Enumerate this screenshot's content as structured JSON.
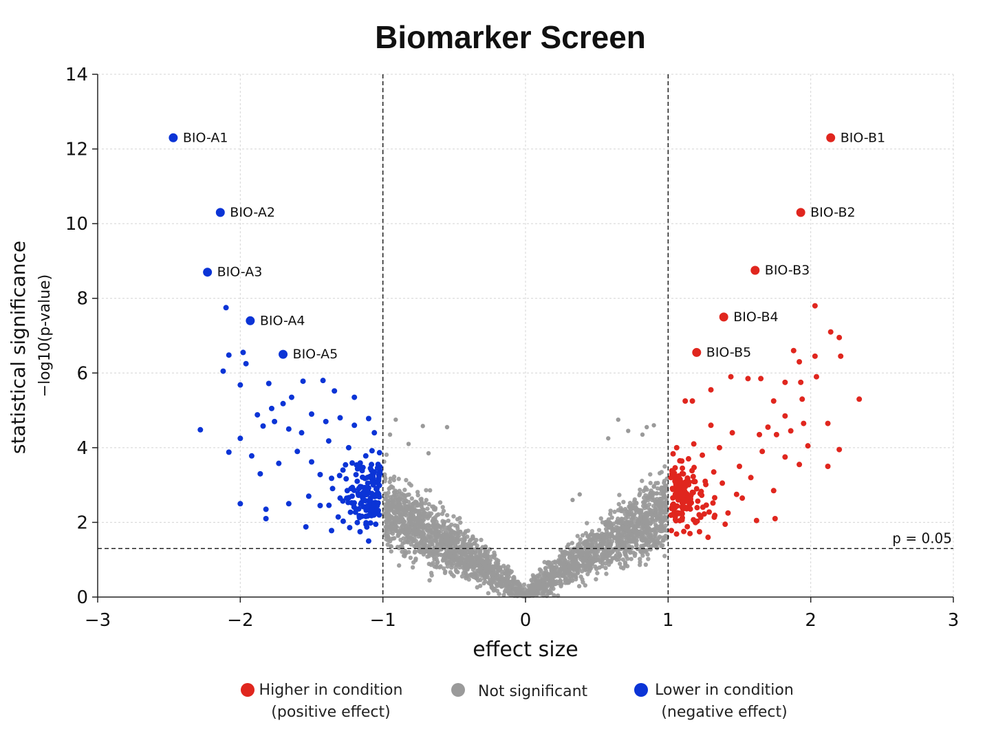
{
  "chart_data": {
    "type": "scatter",
    "title": "Biomarker Screen",
    "xlabel": "effect size",
    "ylabel": "statistical significance",
    "ylabel_sub": "−log10(p-value)",
    "xlim": [
      -3,
      3
    ],
    "ylim": [
      0,
      14
    ],
    "xticks": [
      -3,
      -2,
      -1,
      0,
      1,
      2,
      3
    ],
    "yticks": [
      0,
      2,
      4,
      6,
      8,
      10,
      12,
      14
    ],
    "xtick_labels": [
      "−3",
      "−2",
      "−1",
      "0",
      "1",
      "2",
      "3"
    ],
    "ytick_labels": [
      "0",
      "2",
      "4",
      "6",
      "8",
      "10",
      "12",
      "14"
    ],
    "grid": true,
    "legend_position": "bottom",
    "thresholds": {
      "effect_cutoffs": [
        -1,
        1
      ],
      "pvalue_line_y": 1.3,
      "pvalue_label": "p = 0.05"
    },
    "colors": {
      "positive": "#e0261e",
      "negative": "#0b34d6",
      "not_significant": "#9a9a9a"
    },
    "legend": [
      {
        "key": "positive",
        "line1": "Higher in condition",
        "line2": "(positive effect)"
      },
      {
        "key": "not_significant",
        "line1": "Not significant",
        "line2": ""
      },
      {
        "key": "negative",
        "line1": "Lower in condition",
        "line2": "(negative effect)"
      }
    ],
    "labeled_points": [
      {
        "label": "BIO-A1",
        "x": -2.47,
        "y": 12.3,
        "group": "negative"
      },
      {
        "label": "BIO-A2",
        "x": -2.14,
        "y": 10.3,
        "group": "negative"
      },
      {
        "label": "BIO-A3",
        "x": -2.23,
        "y": 8.7,
        "group": "negative"
      },
      {
        "label": "BIO-A4",
        "x": -1.93,
        "y": 7.4,
        "group": "negative"
      },
      {
        "label": "BIO-A5",
        "x": -1.7,
        "y": 6.5,
        "group": "negative"
      },
      {
        "label": "BIO-B1",
        "x": 2.14,
        "y": 12.3,
        "group": "positive"
      },
      {
        "label": "BIO-B2",
        "x": 1.93,
        "y": 10.3,
        "group": "positive"
      },
      {
        "label": "BIO-B3",
        "x": 1.61,
        "y": 8.75,
        "group": "positive"
      },
      {
        "label": "BIO-B4",
        "x": 1.39,
        "y": 7.5,
        "group": "positive"
      },
      {
        "label": "BIO-B5",
        "x": 1.2,
        "y": 6.55,
        "group": "positive"
      }
    ],
    "negative_points": [
      [
        -2.1,
        7.75
      ],
      [
        -2.08,
        6.48
      ],
      [
        -1.98,
        6.55
      ],
      [
        -1.96,
        6.25
      ],
      [
        -2.12,
        6.05
      ],
      [
        -2.0,
        5.68
      ],
      [
        -2.28,
        4.48
      ],
      [
        -2.08,
        3.88
      ],
      [
        -2.0,
        4.25
      ],
      [
        -1.92,
        3.78
      ],
      [
        -1.8,
        5.72
      ],
      [
        -1.88,
        4.88
      ],
      [
        -1.78,
        5.05
      ],
      [
        -1.7,
        5.18
      ],
      [
        -1.64,
        5.35
      ],
      [
        -1.56,
        5.78
      ],
      [
        -1.42,
        5.8
      ],
      [
        -1.34,
        5.52
      ],
      [
        -1.2,
        5.35
      ],
      [
        -1.84,
        4.58
      ],
      [
        -1.76,
        4.7
      ],
      [
        -1.66,
        4.5
      ],
      [
        -1.57,
        4.4
      ],
      [
        -1.5,
        4.9
      ],
      [
        -1.4,
        4.7
      ],
      [
        -1.3,
        4.8
      ],
      [
        -1.2,
        4.6
      ],
      [
        -1.1,
        4.78
      ],
      [
        -1.86,
        3.3
      ],
      [
        -1.73,
        3.58
      ],
      [
        -1.6,
        3.9
      ],
      [
        -1.5,
        3.62
      ],
      [
        -1.44,
        3.28
      ],
      [
        -1.36,
        3.18
      ],
      [
        -1.28,
        3.4
      ],
      [
        -1.18,
        3.1
      ],
      [
        -1.1,
        2.92
      ],
      [
        -1.05,
        2.7
      ],
      [
        -1.52,
        2.7
      ],
      [
        -1.44,
        2.45
      ],
      [
        -1.3,
        2.65
      ],
      [
        -1.2,
        2.4
      ],
      [
        -1.08,
        2.18
      ],
      [
        -2.0,
        2.5
      ],
      [
        -1.82,
        2.35
      ],
      [
        -1.82,
        2.1
      ],
      [
        -1.66,
        2.5
      ],
      [
        -1.54,
        1.88
      ],
      [
        -1.36,
        1.78
      ],
      [
        -1.16,
        1.75
      ],
      [
        -1.1,
        1.5
      ],
      [
        -1.05,
        1.95
      ],
      [
        -1.38,
        4.18
      ],
      [
        -1.24,
        4.0
      ],
      [
        -1.12,
        3.78
      ],
      [
        -1.06,
        4.4
      ],
      [
        -1.02,
        3.3
      ],
      [
        -1.15,
        2.95
      ],
      [
        -1.25,
        2.85
      ],
      [
        -1.08,
        3.55
      ]
    ],
    "positive_points": [
      [
        2.03,
        7.8
      ],
      [
        2.14,
        7.1
      ],
      [
        2.2,
        6.95
      ],
      [
        2.21,
        6.45
      ],
      [
        2.03,
        6.45
      ],
      [
        1.88,
        6.6
      ],
      [
        1.92,
        6.3
      ],
      [
        2.04,
        5.9
      ],
      [
        1.93,
        5.75
      ],
      [
        1.82,
        5.75
      ],
      [
        1.65,
        5.85
      ],
      [
        1.56,
        5.85
      ],
      [
        2.34,
        5.3
      ],
      [
        1.94,
        5.3
      ],
      [
        1.74,
        5.25
      ],
      [
        1.44,
        5.9
      ],
      [
        1.3,
        5.55
      ],
      [
        1.12,
        5.25
      ],
      [
        1.17,
        5.25
      ],
      [
        2.12,
        4.65
      ],
      [
        2.2,
        3.95
      ],
      [
        2.12,
        3.5
      ],
      [
        1.98,
        4.05
      ],
      [
        1.95,
        4.65
      ],
      [
        1.86,
        4.45
      ],
      [
        1.82,
        4.85
      ],
      [
        1.76,
        4.35
      ],
      [
        1.7,
        4.55
      ],
      [
        1.64,
        4.35
      ],
      [
        1.92,
        3.55
      ],
      [
        1.82,
        3.75
      ],
      [
        1.66,
        3.9
      ],
      [
        1.74,
        2.85
      ],
      [
        1.62,
        2.05
      ],
      [
        1.52,
        2.65
      ],
      [
        1.38,
        3.05
      ],
      [
        1.24,
        3.8
      ],
      [
        1.3,
        4.6
      ],
      [
        1.18,
        4.1
      ],
      [
        1.45,
        4.4
      ],
      [
        1.36,
        4.0
      ],
      [
        1.4,
        1.95
      ],
      [
        1.22,
        1.75
      ],
      [
        1.28,
        1.6
      ],
      [
        1.12,
        2.4
      ],
      [
        1.05,
        2.75
      ],
      [
        1.02,
        3.2
      ],
      [
        1.08,
        3.05
      ],
      [
        1.15,
        2.55
      ],
      [
        1.2,
        2.9
      ],
      [
        1.5,
        3.5
      ],
      [
        1.58,
        3.2
      ],
      [
        1.32,
        3.35
      ],
      [
        1.26,
        3.1
      ],
      [
        1.04,
        2.35
      ],
      [
        1.1,
        3.45
      ],
      [
        1.06,
        4.0
      ],
      [
        1.75,
        2.1
      ],
      [
        1.42,
        2.25
      ],
      [
        1.48,
        2.75
      ]
    ]
  }
}
